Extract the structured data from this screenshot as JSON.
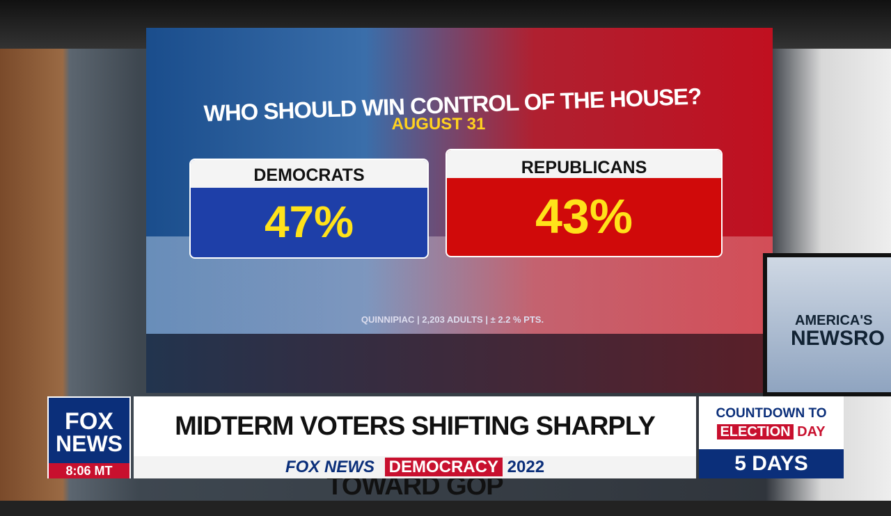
{
  "poll": {
    "title": "WHO SHOULD WIN CONTROL OF THE HOUSE?",
    "date": "AUGUST 31",
    "cards": [
      {
        "party": "DEMOCRATS",
        "value": "47%"
      },
      {
        "party": "REPUBLICANS",
        "value": "43%"
      }
    ],
    "source": "QUINNIPIAC | 2,203 ADULTS | ± 2.2 % PTS."
  },
  "monitor": {
    "line1": "AMERICA'S",
    "line2": "NEWSRO"
  },
  "lower_third": {
    "logo_top": "FOX",
    "logo_bottom": "NEWS",
    "time": "8:06 MT",
    "headline": "MIDTERM VOTERS SHIFTING SHARPLY TOWARD GOP",
    "ticker": {
      "brand": "FOX NEWS",
      "label": "DEMOCRACY",
      "year": "2022"
    },
    "countdown": {
      "line1": "COUNTDOWN TO",
      "election": "ELECTION",
      "day": "DAY",
      "days": "5 DAYS"
    }
  }
}
